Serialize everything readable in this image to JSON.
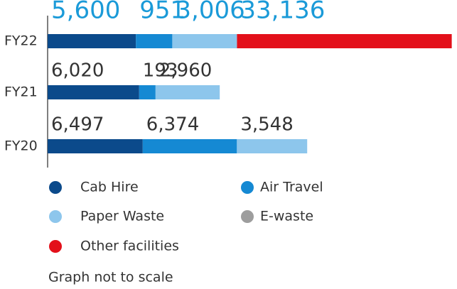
{
  "chart_data": {
    "type": "stacked-bar-horizontal",
    "categories": [
      "FY22",
      "FY21",
      "FY20"
    ],
    "series": [
      {
        "name": "Cab Hire",
        "color": "#0b4a8b",
        "values": [
          5600,
          6020,
          6497
        ],
        "value_labels": [
          "5,600",
          "6,020",
          "6,497"
        ]
      },
      {
        "name": "Air Travel",
        "color": "#1589d3",
        "values": [
          951,
          193,
          6374
        ],
        "value_labels": [
          "951",
          "193",
          "6,374"
        ]
      },
      {
        "name": "Paper Waste",
        "color": "#8dc6ec",
        "values": [
          3006,
          2960,
          3548
        ],
        "value_labels": [
          "3,006",
          "2,960",
          "3,548"
        ]
      },
      {
        "name": "E-waste",
        "color": "#9d9d9d",
        "values": [
          null,
          null,
          null
        ],
        "value_labels": [
          null,
          null,
          null
        ]
      },
      {
        "name": "Other facilities",
        "color": "#e3101a",
        "values": [
          33136,
          null,
          null
        ],
        "value_labels": [
          "33,136",
          null,
          null
        ]
      }
    ],
    "note": "Graph not to scale"
  }
}
